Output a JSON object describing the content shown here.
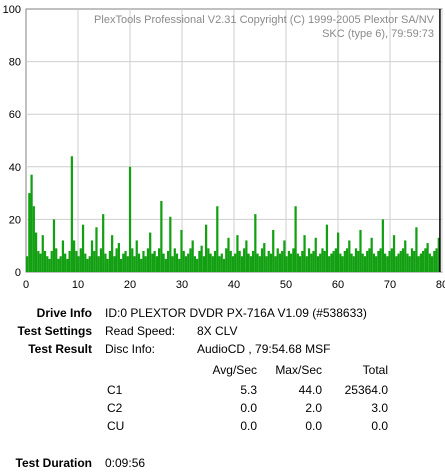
{
  "chart_data": {
    "type": "bar",
    "xlim": [
      0,
      80
    ],
    "ylim": [
      0,
      100
    ],
    "x_ticks": [
      0,
      10,
      20,
      30,
      40,
      50,
      60,
      70,
      80
    ],
    "y_ticks": [
      0,
      20,
      40,
      60,
      80,
      100
    ],
    "grid": true,
    "series_color": "#12a012",
    "end_marker_x": 79.6,
    "watermark_line1": "PlexTools Professional V2.31 Copyright (C) 1999-2005 Plextor SA/NV",
    "watermark_line2": "SKC (type 6), 79:59:73",
    "series": [
      {
        "values": [
          6,
          30,
          37,
          25,
          15,
          8,
          7,
          14,
          8,
          6,
          5,
          8,
          20,
          9,
          5,
          6,
          12,
          7,
          5,
          8,
          44,
          12,
          8,
          6,
          9,
          18,
          7,
          5,
          6,
          12,
          8,
          17,
          6,
          9,
          22,
          7,
          5,
          8,
          14,
          6,
          9,
          11,
          5,
          7,
          8,
          6,
          40,
          9,
          6,
          12,
          7,
          5,
          8,
          6,
          9,
          15,
          7,
          8,
          6,
          9,
          27,
          7,
          5,
          8,
          21,
          6,
          9,
          7,
          5,
          16,
          8,
          6,
          7,
          9,
          12,
          6,
          5,
          8,
          10,
          6,
          18,
          9,
          7,
          6,
          8,
          25,
          6,
          7,
          5,
          9,
          13,
          8,
          6,
          7,
          14,
          8,
          6,
          9,
          12,
          7,
          6,
          8,
          22,
          7,
          6,
          9,
          11,
          6,
          8,
          7,
          16,
          6,
          9,
          7,
          8,
          12,
          6,
          8,
          7,
          9,
          25,
          7,
          6,
          8,
          14,
          6,
          9,
          7,
          8,
          13,
          6,
          7,
          9,
          8,
          18,
          6,
          7,
          8,
          9,
          15,
          7,
          6,
          8,
          9,
          12,
          7,
          6,
          9,
          8,
          16,
          7,
          6,
          8,
          9,
          13,
          7,
          6,
          8,
          9,
          20,
          7,
          6,
          8,
          9,
          14,
          6,
          7,
          8,
          9,
          12,
          7,
          6,
          9,
          8,
          17,
          6,
          7,
          8,
          9,
          11,
          7,
          6,
          8,
          9,
          13
        ]
      }
    ]
  },
  "labels": {
    "drive_info": "Drive Info",
    "test_settings": "Test Settings",
    "test_result": "Test Result",
    "test_duration": "Test Duration"
  },
  "values": {
    "drive_info": "ID:0 PLEXTOR DVDR  PX-716A  V1.09 (#538633)",
    "read_speed_label": "Read Speed:",
    "read_speed": "8X CLV",
    "disc_info_label": "Disc Info:",
    "disc_info": "AudioCD , 79:54.68 MSF",
    "test_duration": "0:09:56"
  },
  "results": {
    "headers": [
      "Avg/Sec",
      "Max/Sec",
      "Total"
    ],
    "rows": [
      {
        "name": "C1",
        "avg": "5.3",
        "max": "44.0",
        "total": "25364.0"
      },
      {
        "name": "C2",
        "avg": "0.0",
        "max": "2.0",
        "total": "3.0"
      },
      {
        "name": "CU",
        "avg": "0.0",
        "max": "0.0",
        "total": "0.0"
      }
    ]
  }
}
